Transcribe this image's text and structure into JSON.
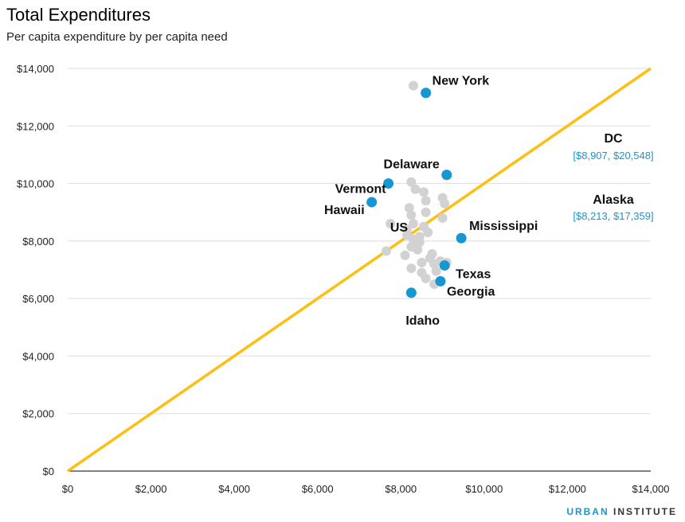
{
  "chart_data": {
    "type": "scatter",
    "title": "Total Expenditures",
    "subtitle": "Per capita expenditure by per capita need",
    "xlim": [
      0,
      14000
    ],
    "ylim": [
      0,
      14000
    ],
    "xticks": [
      "$0",
      "$2,000",
      "$4,000",
      "$6,000",
      "$8,000",
      "$10,000",
      "$12,000",
      "$14,000"
    ],
    "yticks": [
      "$0",
      "$2,000",
      "$4,000",
      "$6,000",
      "$8,000",
      "$10,000",
      "$12,000",
      "$14,000"
    ],
    "grid": "horizontal",
    "reference_line": {
      "from": [
        0,
        0
      ],
      "to": [
        14000,
        14000
      ],
      "color": "#fdbf11"
    },
    "colors": {
      "highlight": "#1696d2",
      "other": "#d2d2d2",
      "line": "#fdbf11"
    },
    "highlighted": [
      {
        "label": "New York",
        "x": 8600,
        "y": 13150
      },
      {
        "label": "Delaware",
        "x": 9100,
        "y": 10300
      },
      {
        "label": "Vermont",
        "x": 7700,
        "y": 10000
      },
      {
        "label": "Hawaii",
        "x": 7300,
        "y": 9350
      },
      {
        "label": "Mississippi",
        "x": 9450,
        "y": 8100
      },
      {
        "label": "Texas",
        "x": 9050,
        "y": 7150
      },
      {
        "label": "Georgia",
        "x": 8950,
        "y": 6600
      },
      {
        "label": "Idaho",
        "x": 8250,
        "y": 6200
      }
    ],
    "us_label": "US",
    "other_points": [
      [
        8300,
        13400
      ],
      [
        8250,
        10050
      ],
      [
        8350,
        9800
      ],
      [
        8550,
        9700
      ],
      [
        8600,
        9400
      ],
      [
        9000,
        9500
      ],
      [
        9050,
        9300
      ],
      [
        8200,
        9150
      ],
      [
        8250,
        8900
      ],
      [
        8600,
        9000
      ],
      [
        9000,
        8800
      ],
      [
        7750,
        8600
      ],
      [
        8300,
        8600
      ],
      [
        8550,
        8500
      ],
      [
        8650,
        8300
      ],
      [
        8150,
        8200
      ],
      [
        8300,
        8050
      ],
      [
        8450,
        7950
      ],
      [
        8250,
        7800
      ],
      [
        8400,
        7700
      ],
      [
        7650,
        7650
      ],
      [
        8100,
        7500
      ],
      [
        8750,
        7550
      ],
      [
        8700,
        7400
      ],
      [
        8500,
        7250
      ],
      [
        8800,
        7200
      ],
      [
        8950,
        7300
      ],
      [
        9100,
        7250
      ],
      [
        8250,
        7050
      ],
      [
        8500,
        6900
      ],
      [
        8850,
        6950
      ],
      [
        8600,
        6700
      ],
      [
        8800,
        6500
      ],
      [
        8150,
        8400
      ],
      [
        8450,
        8150
      ]
    ],
    "annotations": [
      {
        "label": "DC",
        "values": "[$8,907, $20,548]"
      },
      {
        "label": "Alaska",
        "values": "[$8,213, $17,359]"
      }
    ]
  },
  "branding": {
    "urban": "URBAN",
    "institute": "INSTITUTE"
  }
}
